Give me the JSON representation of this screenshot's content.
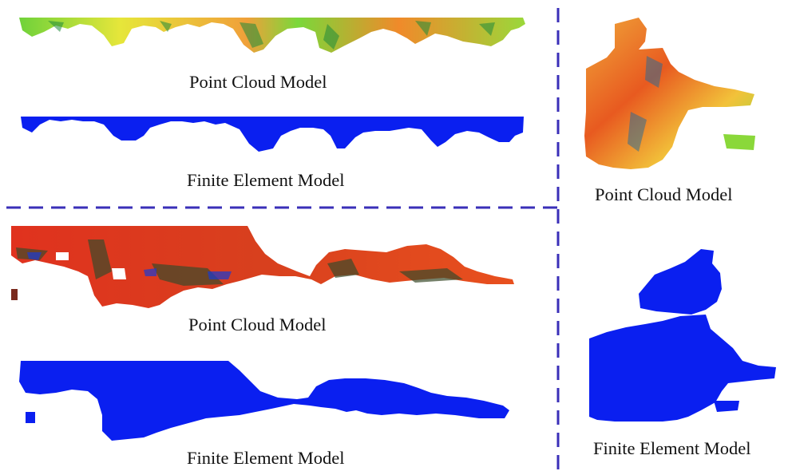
{
  "panels": {
    "top_left": {
      "point_cloud_label": "Point Cloud Model",
      "finite_element_label": "Finite Element Model"
    },
    "bottom_left": {
      "point_cloud_label": "Point Cloud Model",
      "finite_element_label": "Finite Element Model"
    },
    "right": {
      "point_cloud_label": "Point Cloud Model",
      "finite_element_label": "Finite Element Model"
    }
  },
  "colors": {
    "divider": "#3a2fb8",
    "fem_blue": "#0a1ff0",
    "cloud_green": "#5fd33a",
    "cloud_yellow": "#e8e83a",
    "cloud_orange": "#f08a2a",
    "cloud_red": "#e0321e",
    "cloud_dark": "#3a4a2a"
  }
}
